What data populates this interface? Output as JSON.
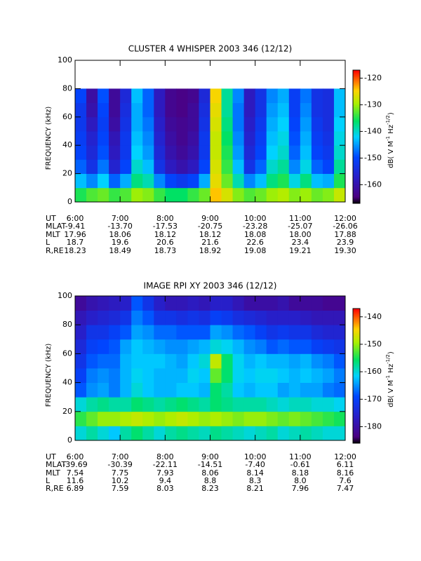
{
  "chart_data": [
    {
      "type": "heatmap",
      "title": "CLUSTER 4 WHISPER 2003 346 (12/12)",
      "ylabel": "FREQUENCY (kHz)",
      "colorbar_label": [
        "dB( V M",
        "-1",
        " Hz",
        "-1/2",
        ")"
      ],
      "xlim": [
        6,
        12
      ],
      "xticks": [
        {
          "value": 6,
          "label": "6:00"
        },
        {
          "value": 7,
          "label": "7:00"
        },
        {
          "value": 8,
          "label": "8:00"
        },
        {
          "value": 9,
          "label": "9:00"
        },
        {
          "value": 10,
          "label": "10:00"
        },
        {
          "value": 11,
          "label": "11:00"
        },
        {
          "value": 12,
          "label": "12:00"
        }
      ],
      "ylim": [
        0,
        100
      ],
      "yticks": [
        0,
        20,
        40,
        60,
        80,
        100
      ],
      "zlim": [
        -167,
        -117
      ],
      "zticks": [
        -160,
        -150,
        -140,
        -130,
        -120
      ],
      "xbins": [
        6,
        6.25,
        6.5,
        6.75,
        7,
        7.25,
        7.5,
        7.75,
        8,
        8.25,
        8.5,
        8.75,
        9,
        9.25,
        9.5,
        9.75,
        10,
        10.25,
        10.5,
        10.75,
        11,
        11.25,
        11.5,
        11.75,
        12
      ],
      "ybins": [
        0,
        10,
        20,
        30,
        40,
        50,
        60,
        70,
        80
      ],
      "z": [
        [
          -135,
          -133,
          -132,
          -134,
          -133,
          -130,
          -131,
          -134,
          -136,
          -136,
          -134,
          -132,
          -124,
          -127,
          -131,
          -133,
          -132,
          -130,
          -129,
          -131,
          -130,
          -132,
          -131,
          -128
        ],
        [
          -143,
          -146,
          -142,
          -148,
          -144,
          -137,
          -139,
          -146,
          -150,
          -152,
          -150,
          -144,
          -126,
          -132,
          -139,
          -146,
          -143,
          -137,
          -135,
          -141,
          -137,
          -143,
          -144,
          -135
        ],
        [
          -148,
          -153,
          -147,
          -156,
          -150,
          -140,
          -143,
          -153,
          -158,
          -160,
          -158,
          -150,
          -127,
          -134,
          -143,
          -153,
          -148,
          -140,
          -138,
          -146,
          -141,
          -148,
          -150,
          -138
        ],
        [
          -150,
          -155,
          -149,
          -158,
          -152,
          -142,
          -145,
          -155,
          -160,
          -162,
          -160,
          -152,
          -128,
          -135,
          -145,
          -155,
          -150,
          -142,
          -140,
          -148,
          -143,
          -150,
          -152,
          -140
        ],
        [
          -151,
          -156,
          -150,
          -159,
          -152,
          -143,
          -146,
          -156,
          -161,
          -163,
          -161,
          -152,
          -128,
          -136,
          -146,
          -156,
          -151,
          -143,
          -141,
          -149,
          -144,
          -151,
          -153,
          -141
        ],
        [
          -152,
          -158,
          -151,
          -161,
          -153,
          -144,
          -147,
          -157,
          -162,
          -163,
          -162,
          -153,
          -127,
          -137,
          -147,
          -157,
          -152,
          -144,
          -142,
          -150,
          -145,
          -152,
          -154,
          -142
        ],
        [
          -152,
          -160,
          -150,
          -162,
          -154,
          -144,
          -148,
          -158,
          -163,
          -164,
          -162,
          -154,
          -126,
          -138,
          -147,
          -158,
          -153,
          -145,
          -143,
          -151,
          -146,
          -153,
          -154,
          -143
        ],
        [
          -150,
          -161,
          -149,
          -162,
          -155,
          -143,
          -148,
          -158,
          -163,
          -164,
          -163,
          -155,
          -125,
          -138,
          -146,
          -158,
          -153,
          -146,
          -144,
          -151,
          -147,
          -153,
          -154,
          -143
        ]
      ],
      "ephemeris": {
        "labels": [
          "UT",
          "MLAT",
          "MLT",
          "L",
          "R,RE"
        ],
        "rows": [
          [
            "-9.41",
            "-13.70",
            "-17.53",
            "-20.75",
            "-23.28",
            "-25.07",
            "-26.06"
          ],
          [
            "17.96",
            "18.06",
            "18.12",
            "18.12",
            "18.08",
            "18.00",
            "17.88"
          ],
          [
            "18.7",
            "19.6",
            "20.6",
            "21.6",
            "22.6",
            "23.4",
            "23.9"
          ],
          [
            "18.23",
            "18.49",
            "18.73",
            "18.92",
            "19.08",
            "19.21",
            "19.30"
          ]
        ]
      }
    },
    {
      "type": "heatmap",
      "title": "IMAGE RPI XY 2003 346 (12/12)",
      "ylabel": "FREQUENCY (kHz)",
      "colorbar_label": [
        "dB( V M",
        "-1",
        " Hz",
        "-1/2",
        ")"
      ],
      "xlim": [
        6,
        12
      ],
      "xticks": [
        {
          "value": 6,
          "label": "6:00"
        },
        {
          "value": 7,
          "label": "7:00"
        },
        {
          "value": 8,
          "label": "8:00"
        },
        {
          "value": 9,
          "label": "9:00"
        },
        {
          "value": 10,
          "label": "10:00"
        },
        {
          "value": 11,
          "label": "11:00"
        },
        {
          "value": 12,
          "label": "12:00"
        }
      ],
      "ylim": [
        0,
        100
      ],
      "yticks": [
        0,
        20,
        40,
        60,
        80,
        100
      ],
      "zlim": [
        -186,
        -137
      ],
      "zticks": [
        -180,
        -170,
        -160,
        -150,
        -140
      ],
      "xbins": [
        6,
        6.25,
        6.5,
        6.75,
        7,
        7.25,
        7.5,
        7.75,
        8,
        8.25,
        8.5,
        8.75,
        9,
        9.25,
        9.5,
        9.75,
        10,
        10.25,
        10.5,
        10.75,
        11,
        11.25,
        11.5,
        11.75,
        12
      ],
      "ybins": [
        0,
        10,
        20,
        30,
        40,
        50,
        60,
        70,
        80,
        90,
        100
      ],
      "z": [
        [
          -160,
          -158,
          -160,
          -162,
          -158,
          -156,
          -158,
          -160,
          -158,
          -157,
          -158,
          -159,
          -157,
          -158,
          -159,
          -160,
          -159,
          -158,
          -160,
          -159,
          -158,
          -159,
          -160,
          -160
        ],
        [
          -154,
          -152,
          -150,
          -150,
          -149,
          -148,
          -149,
          -150,
          -149,
          -148,
          -149,
          -150,
          -149,
          -150,
          -151,
          -150,
          -150,
          -151,
          -152,
          -151,
          -152,
          -153,
          -154,
          -155
        ],
        [
          -160,
          -158,
          -157,
          -158,
          -158,
          -156,
          -157,
          -158,
          -157,
          -156,
          -157,
          -158,
          -156,
          -157,
          -158,
          -158,
          -158,
          -159,
          -160,
          -159,
          -159,
          -160,
          -160,
          -161
        ],
        [
          -168,
          -165,
          -164,
          -166,
          -163,
          -160,
          -162,
          -163,
          -163,
          -162,
          -162,
          -163,
          -156,
          -158,
          -162,
          -163,
          -162,
          -162,
          -164,
          -163,
          -164,
          -164,
          -166,
          -167
        ],
        [
          -170,
          -166,
          -165,
          -166,
          -163,
          -161,
          -162,
          -163,
          -163,
          -163,
          -161,
          -162,
          -152,
          -156,
          -161,
          -162,
          -161,
          -161,
          -162,
          -163,
          -162,
          -163,
          -164,
          -166
        ],
        [
          -172,
          -168,
          -167,
          -167,
          -163,
          -162,
          -162,
          -162,
          -163,
          -164,
          -162,
          -160,
          -148,
          -156,
          -161,
          -163,
          -162,
          -163,
          -163,
          -164,
          -163,
          -165,
          -166,
          -168
        ],
        [
          -174,
          -170,
          -169,
          -168,
          -164,
          -162,
          -163,
          -164,
          -165,
          -165,
          -164,
          -163,
          -160,
          -161,
          -163,
          -165,
          -166,
          -168,
          -167,
          -168,
          -168,
          -170,
          -171,
          -172
        ],
        [
          -176,
          -172,
          -172,
          -170,
          -168,
          -164,
          -165,
          -167,
          -167,
          -168,
          -168,
          -168,
          -164,
          -165,
          -167,
          -168,
          -170,
          -172,
          -171,
          -172,
          -172,
          -174,
          -175,
          -175
        ],
        [
          -178,
          -176,
          -175,
          -174,
          -172,
          -166,
          -168,
          -172,
          -172,
          -173,
          -172,
          -173,
          -170,
          -171,
          -173,
          -174,
          -175,
          -176,
          -176,
          -176,
          -177,
          -178,
          -178,
          -178
        ],
        [
          -181,
          -179,
          -178,
          -177,
          -176,
          -168,
          -172,
          -176,
          -178,
          -178,
          -177,
          -178,
          -176,
          -176,
          -178,
          -180,
          -180,
          -180,
          -179,
          -181,
          -181,
          -181,
          -182,
          -182
        ]
      ],
      "ephemeris": {
        "labels": [
          "UT",
          "MLAT",
          "MLT",
          "L",
          "R,RE"
        ],
        "rows": [
          [
            "-39.69",
            "-30.39",
            "-22.11",
            "-14.51",
            "-7.40",
            "-0.61",
            "6.11"
          ],
          [
            "7.54",
            "7.75",
            "7.93",
            "8.06",
            "8.14",
            "8.18",
            "8.16"
          ],
          [
            "11.6",
            "10.2",
            "9.4",
            "8.8",
            "8.3",
            "8.0",
            "7.6"
          ],
          [
            "6.89",
            "7.59",
            "8.03",
            "8.23",
            "8.21",
            "7.96",
            "7.47"
          ]
        ]
      }
    }
  ]
}
